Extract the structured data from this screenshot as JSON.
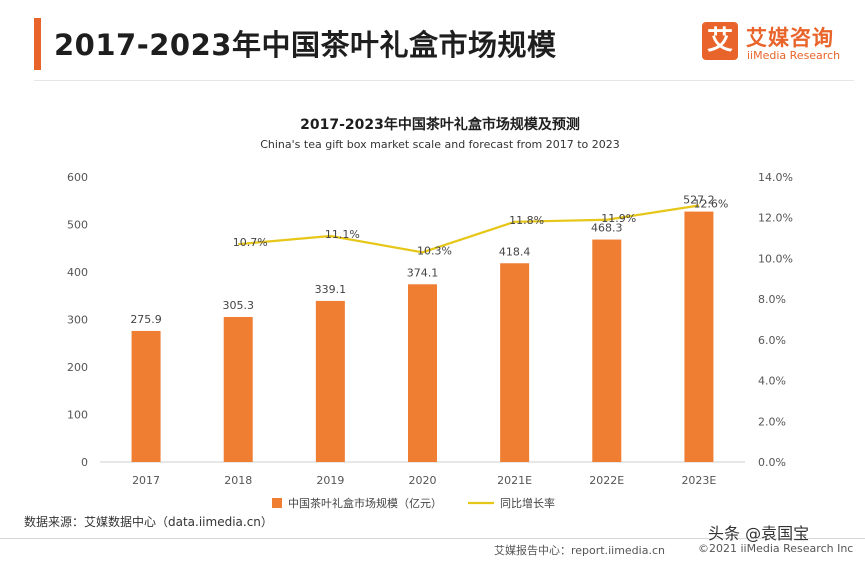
{
  "header": {
    "title": "2017-2023年中国茶叶礼盒市场规模",
    "logo_mark": "艾",
    "logo_cn": "艾媒咨询",
    "logo_en": "iiMedia Research"
  },
  "chart_data": {
    "type": "bar",
    "title": "2017-2023年中国茶叶礼盒市场规模及预测",
    "subtitle": "China's tea gift box market scale and forecast from 2017 to 2023",
    "categories": [
      "2017",
      "2018",
      "2019",
      "2020",
      "2021E",
      "2022E",
      "2023E"
    ],
    "series": [
      {
        "name": "中国茶叶礼盒市场规模（亿元）",
        "type": "bar",
        "axis": "left",
        "color": "#ef7d32",
        "values": [
          275.9,
          305.3,
          339.1,
          374.1,
          418.4,
          468.3,
          527.2
        ],
        "labels": [
          "275.9",
          "305.3",
          "339.1",
          "374.1",
          "418.4",
          "468.3",
          "527.2"
        ]
      },
      {
        "name": "同比增长率",
        "type": "line",
        "axis": "right",
        "color": "#e6c619",
        "values": [
          null,
          10.7,
          11.1,
          10.3,
          11.8,
          11.9,
          12.6
        ],
        "labels": [
          "",
          "10.7%",
          "11.1%",
          "10.3%",
          "11.8%",
          "11.9%",
          "12.6%"
        ]
      }
    ],
    "ylim": [
      0,
      600
    ],
    "y_ticks": [
      "0",
      "100",
      "200",
      "300",
      "400",
      "500",
      "600"
    ],
    "y2lim": [
      0,
      14
    ],
    "y2_ticks": [
      "0.0%",
      "2.0%",
      "4.0%",
      "6.0%",
      "8.0%",
      "10.0%",
      "12.0%",
      "14.0%"
    ],
    "grid": false,
    "legend": "bottom-center"
  },
  "footer": {
    "source": "数据来源：艾媒数据中心（data.iimedia.cn）",
    "report": "艾媒报告中心：report.iimedia.cn",
    "copyright": "©2021  iiMedia Research  Inc",
    "watermark": "头条 @袁国宝"
  }
}
